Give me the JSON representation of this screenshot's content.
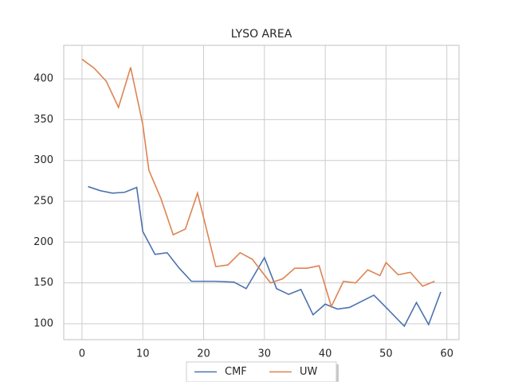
{
  "chart_data": {
    "type": "line",
    "title": "LYSO AREA",
    "series": [
      {
        "name": "CMF",
        "color": "#4c72b0",
        "x": [
          1,
          3,
          5,
          7,
          9,
          10,
          12,
          14,
          16,
          18,
          20,
          22,
          25,
          27,
          30,
          32,
          34,
          36,
          38,
          40,
          42,
          44,
          48,
          50,
          53,
          55,
          57,
          59
        ],
        "values": [
          268,
          263,
          260,
          261,
          267,
          213,
          185,
          187,
          168,
          152,
          152,
          152,
          151,
          143,
          181,
          143,
          136,
          142,
          111,
          124,
          118,
          120,
          135,
          120,
          97,
          126,
          99,
          139
        ]
      },
      {
        "name": "UW",
        "color": "#dd8452",
        "x": [
          0,
          2,
          4,
          6,
          8,
          10,
          11,
          13,
          15,
          17,
          19,
          22,
          24,
          26,
          28,
          31,
          33,
          35,
          37,
          39,
          41,
          43,
          45,
          47,
          49,
          50,
          52,
          54,
          56,
          58
        ],
        "values": [
          424,
          413,
          397,
          365,
          414,
          344,
          288,
          253,
          209,
          216,
          260,
          170,
          172,
          187,
          179,
          150,
          155,
          168,
          168,
          171,
          121,
          152,
          150,
          166,
          159,
          175,
          160,
          163,
          146,
          152
        ]
      }
    ],
    "xlim": [
      -3,
      62
    ],
    "xticks": [
      0,
      10,
      20,
      30,
      40,
      50,
      60
    ],
    "ylim": [
      80.5,
      441
    ],
    "yticks": [
      100,
      150,
      200,
      250,
      300,
      350,
      400
    ],
    "grid": true,
    "legend": "lower center"
  }
}
